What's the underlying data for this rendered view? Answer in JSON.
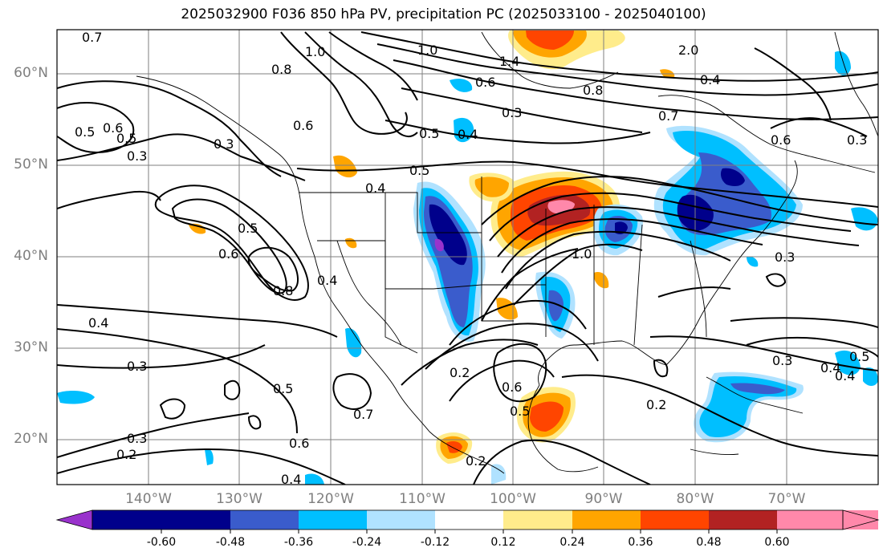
{
  "title": "2025032900 F036 850 hPa PV, precipitation PC (2025033100 - 2025040100)",
  "lat_labels": [
    "60°N",
    "50°N",
    "40°N",
    "30°N",
    "20°N"
  ],
  "lon_labels": [
    "140°W",
    "130°W",
    "120°W",
    "110°W",
    "100°W",
    "90°W",
    "80°W",
    "70°W"
  ],
  "colorbar": {
    "ticks": [
      "-0.60",
      "-0.48",
      "-0.36",
      "-0.24",
      "-0.12",
      "0.12",
      "0.24",
      "0.36",
      "0.48",
      "0.60"
    ],
    "colors": [
      "#9932cc",
      "#00008b",
      "#3a5ccc",
      "#00bfff",
      "#b0e2ff",
      "#ffffff",
      "#ffec8b",
      "#ffa500",
      "#ff4500",
      "#b22222",
      "#ff88aa"
    ]
  },
  "contour_labels": [
    "0.7",
    "0.6",
    "0.5",
    "0.3",
    "0.8",
    "1.0",
    "0.6",
    "0.5",
    "0.4",
    "0.3",
    "0.5",
    "1.0",
    "1.4",
    "0.6",
    "0.3",
    "0.8",
    "0.7",
    "0.4",
    "0.4",
    "0.5",
    "0.3",
    "0.6",
    "0.8",
    "0.4",
    "0.4",
    "0.3",
    "0.2",
    "0.5",
    "0.6",
    "0.7",
    "0.2",
    "0.6",
    "0.5",
    "0.2",
    "0.3",
    "0.4",
    "0.2",
    "0.3",
    "0.4",
    "0.5",
    "0.3",
    "1.0",
    "0.6",
    "0.5",
    "0.4",
    "2.0"
  ]
}
